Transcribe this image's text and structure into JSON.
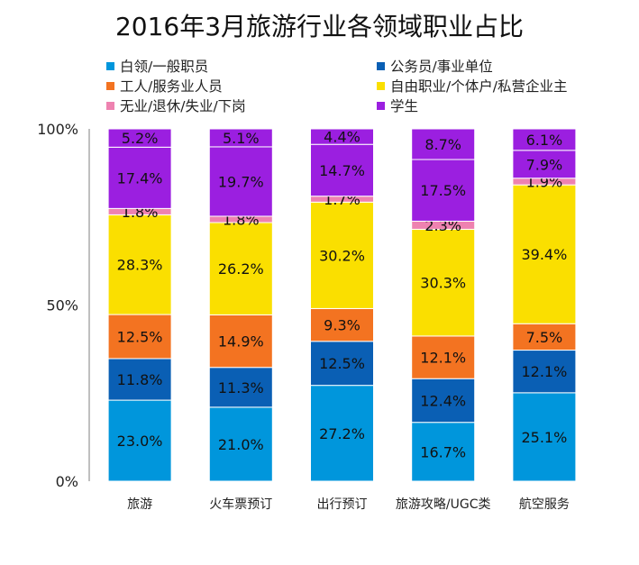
{
  "colors": {
    "white_collar": "#0096dc",
    "civil_servant": "#0a5fb4",
    "service_worker": "#f37321",
    "self_employed": "#fadf00",
    "unemployed": "#ee82b0",
    "student": "#9b1fe0"
  },
  "chart_data": {
    "type": "bar",
    "stacked": true,
    "title": "2016年3月旅游行业各领域职业占比",
    "xlabel": "",
    "ylabel": "",
    "ylim": [
      0,
      100
    ],
    "yticks": [
      "0%",
      "50%",
      "100%"
    ],
    "legend_position": "top",
    "categories": [
      "旅游",
      "火车票预订",
      "出行预订",
      "旅游攻略/UGC类",
      "航空服务"
    ],
    "series": [
      {
        "name": "白领/一般职员",
        "color_key": "white_collar",
        "values": [
          23.0,
          21.0,
          27.2,
          16.7,
          25.1
        ],
        "labels": [
          "23.0%",
          "21.0%",
          "27.2%",
          "16.7%",
          "25.1%"
        ]
      },
      {
        "name": "公务员/事业单位",
        "color_key": "civil_servant",
        "values": [
          11.8,
          11.3,
          12.5,
          12.4,
          12.1
        ],
        "labels": [
          "11.8%",
          "11.3%",
          "12.5%",
          "12.4%",
          "12.1%"
        ]
      },
      {
        "name": "工人/服务业人员",
        "color_key": "service_worker",
        "values": [
          12.5,
          14.9,
          9.3,
          12.1,
          7.5
        ],
        "labels": [
          "12.5%",
          "14.9%",
          "9.3%",
          "12.1%",
          "7.5%"
        ]
      },
      {
        "name": "自由职业/个体户/私营企业主",
        "color_key": "self_employed",
        "values": [
          28.3,
          26.2,
          30.2,
          30.3,
          39.4
        ],
        "labels": [
          "28.3%",
          "26.2%",
          "30.2%",
          "30.3%",
          "39.4%"
        ]
      },
      {
        "name": "无业/退休/失业/下岗",
        "color_key": "unemployed",
        "values": [
          1.8,
          1.8,
          1.7,
          2.3,
          1.9
        ],
        "labels": [
          "1.8%",
          "1.8%",
          "1.7%",
          "2.3%",
          "1.9%"
        ]
      },
      {
        "name": "学生",
        "color_key": "student",
        "values": [
          17.4,
          19.7,
          14.7,
          17.5,
          7.9
        ],
        "labels": [
          "17.4%",
          "19.7%",
          "14.7%",
          "17.5%",
          "7.9%"
        ]
      },
      {
        "name": "",
        "color_key": "student",
        "values": [
          5.2,
          5.1,
          4.4,
          8.7,
          6.1
        ],
        "labels": [
          "5.2%",
          "5.1%",
          "4.4%",
          "8.7%",
          "6.1%"
        ]
      }
    ]
  },
  "legend": {
    "items": [
      {
        "label": "白领/一般职员",
        "color_key": "white_collar"
      },
      {
        "label": "公务员/事业单位",
        "color_key": "civil_servant"
      },
      {
        "label": "工人/服务业人员",
        "color_key": "service_worker"
      },
      {
        "label": "自由职业/个体户/私营企业主",
        "color_key": "self_employed"
      },
      {
        "label": "无业/退休/失业/下岗",
        "color_key": "unemployed"
      },
      {
        "label": "学生",
        "color_key": "student"
      }
    ]
  }
}
